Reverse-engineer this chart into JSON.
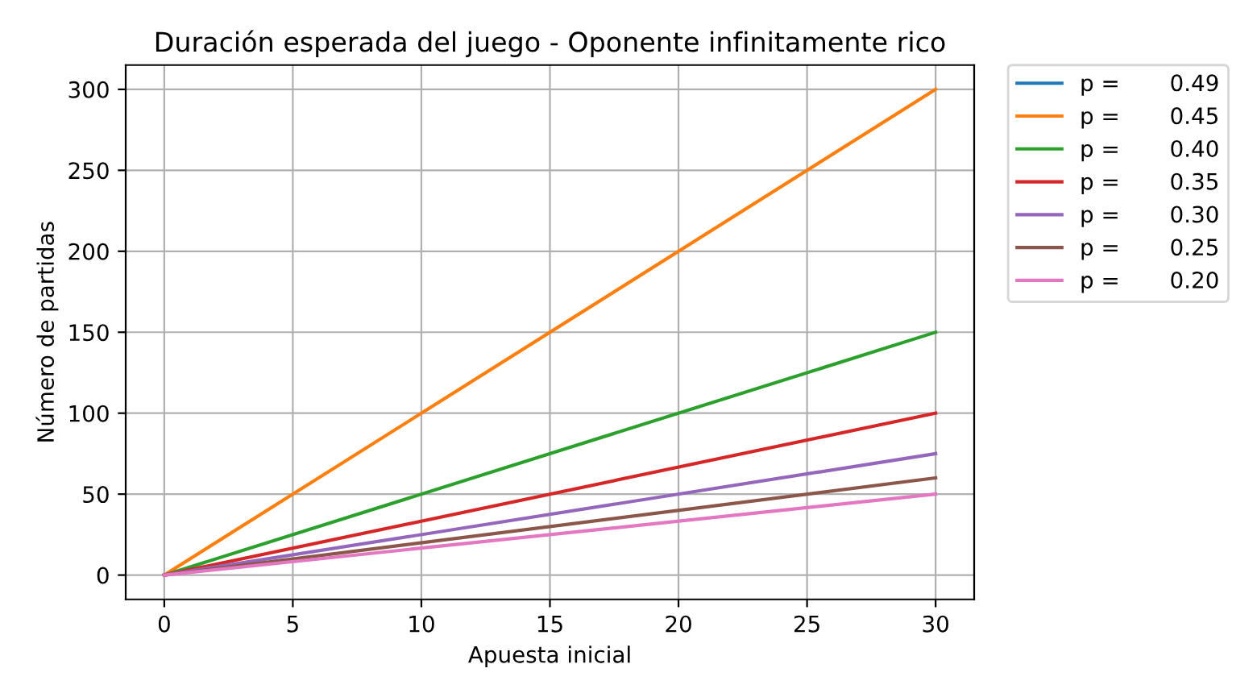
{
  "chart_data": {
    "type": "line",
    "title": "Duración esperada del juego - Oponente infinitamente rico",
    "xlabel": "Apuesta inicial",
    "ylabel": "Número de partidas",
    "x": [
      0,
      30
    ],
    "series": [
      {
        "name": "p =       0.49",
        "color": "#1f77b4",
        "values": [
          null,
          null
        ]
      },
      {
        "name": "p =       0.45",
        "color": "#ff7f0e",
        "values": [
          0,
          300
        ]
      },
      {
        "name": "p =       0.40",
        "color": "#2ca02c",
        "values": [
          0,
          150
        ]
      },
      {
        "name": "p =       0.35",
        "color": "#d62728",
        "values": [
          0,
          100
        ]
      },
      {
        "name": "p =       0.30",
        "color": "#9467bd",
        "values": [
          0,
          75
        ]
      },
      {
        "name": "p =       0.25",
        "color": "#8c564b",
        "values": [
          0,
          60
        ]
      },
      {
        "name": "p =       0.20",
        "color": "#e377c2",
        "values": [
          0,
          50
        ]
      }
    ],
    "xlim": [
      -1.5,
      31.5
    ],
    "ylim": [
      -15,
      315
    ],
    "xticks": [
      0,
      5,
      10,
      15,
      20,
      25,
      30
    ],
    "yticks": [
      0,
      50,
      100,
      150,
      200,
      250,
      300
    ],
    "grid": true,
    "legend": "top right",
    "marker": "none",
    "line_style": "solid"
  }
}
